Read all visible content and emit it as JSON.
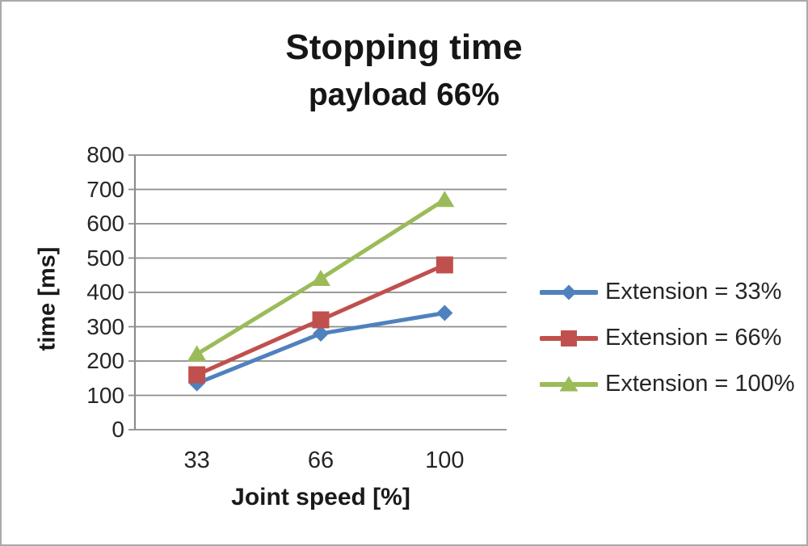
{
  "chart_data": {
    "type": "line",
    "title": "Stopping time",
    "subtitle": "payload 66%",
    "xlabel": "Joint speed [%]",
    "ylabel": "time [ms]",
    "categories": [
      "33",
      "66",
      "100"
    ],
    "ylim": [
      0,
      800
    ],
    "y_tick_step": 100,
    "y_ticks": [
      800,
      700,
      600,
      500,
      400,
      300,
      200,
      100,
      0
    ],
    "grid": true,
    "legend_position": "right",
    "series": [
      {
        "name": "Extension = 33%",
        "marker": "diamond",
        "color": "#4F81BD",
        "values": [
          135,
          280,
          340
        ]
      },
      {
        "name": "Extension = 66%",
        "marker": "square",
        "color": "#C0504D",
        "values": [
          160,
          320,
          480
        ]
      },
      {
        "name": "Extension = 100%",
        "marker": "triangle",
        "color": "#9BBB59",
        "values": [
          220,
          440,
          670
        ]
      }
    ]
  },
  "colors": {
    "axis": "#8C8C8C",
    "gridline": "#8C8C8C",
    "text": "#262626",
    "background": "#FFFFFF",
    "canvas_border": "#A9A9A9"
  }
}
